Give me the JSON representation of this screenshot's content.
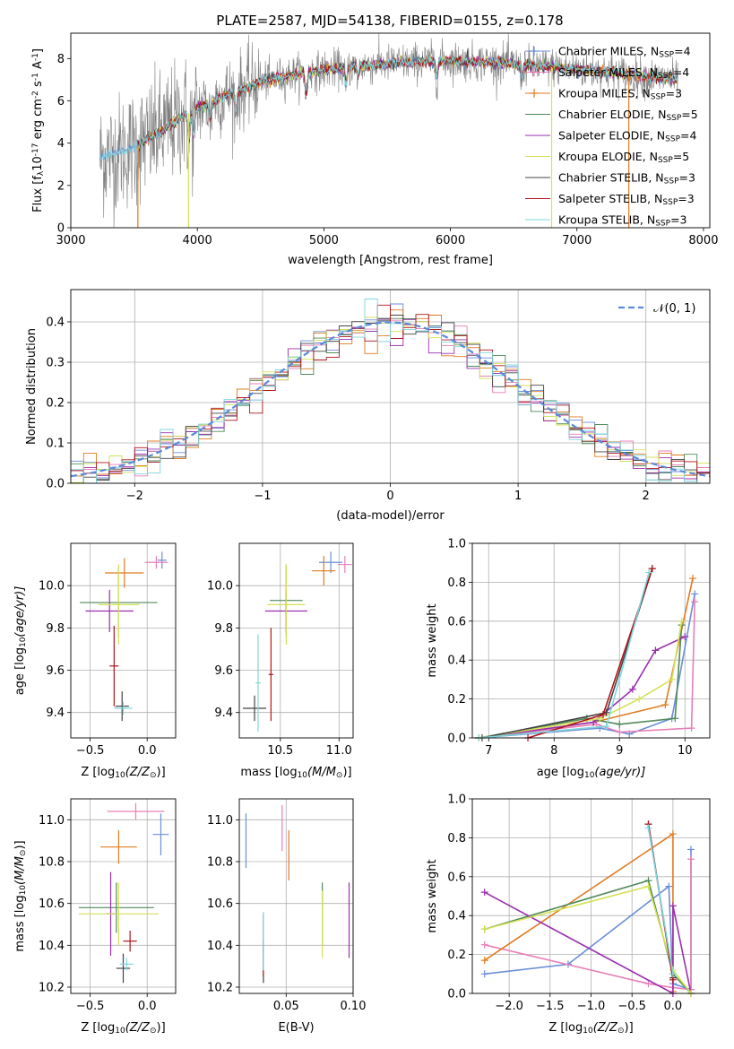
{
  "figure_title": "PLATE=2587, MJD=54138, FIBERID=0155, z=0.178",
  "legend_entries": [
    {
      "label": "Chabrier MILES, N",
      "sub": "SSP",
      "tail": "=4",
      "color": "#6a8ed8",
      "marker": true
    },
    {
      "label": "Salpeter MILES, N",
      "sub": "SSP",
      "tail": "=4",
      "color": "#e87fb8",
      "marker": true
    },
    {
      "label": "Kroupa MILES, N",
      "sub": "SSP",
      "tail": "=3",
      "color": "#e07b1f",
      "marker": true
    },
    {
      "label": "Chabrier ELODIE, N",
      "sub": "SSP",
      "tail": "=5",
      "color": "#4f8a5b",
      "marker": false
    },
    {
      "label": "Salpeter ELODIE, N",
      "sub": "SSP",
      "tail": "=4",
      "color": "#9a2fb0",
      "marker": false
    },
    {
      "label": "Kroupa ELODIE, N",
      "sub": "SSP",
      "tail": "=5",
      "color": "#d4e157",
      "marker": false
    },
    {
      "label": "Chabrier STELIB, N",
      "sub": "SSP",
      "tail": "=3",
      "color": "#444444",
      "marker": false
    },
    {
      "label": "Salpeter STELIB, N",
      "sub": "SSP",
      "tail": "=3",
      "color": "#b0141c",
      "marker": false
    },
    {
      "label": "Kroupa STELIB, N",
      "sub": "SSP",
      "tail": "=3",
      "color": "#7fd6dc",
      "marker": false
    }
  ],
  "chart_data": [
    {
      "id": "spectrum",
      "type": "line",
      "xlabel": "wavelength [Angstrom, rest frame]",
      "ylabel": "Flux [f",
      "ylabel_sub": "λ",
      "ylabel_tail": "10",
      "ylabel_sup": "-17",
      "ylabel_end": " erg cm",
      "ylabel_sup2": "-2",
      "ylabel_end2": " s",
      "ylabel_sup3": "-1",
      "ylabel_end3": " A",
      "ylabel_sup4": "-1",
      "ylabel_close": "]",
      "xlim": [
        3000,
        8050
      ],
      "ylim": [
        0,
        9.2
      ],
      "xticks": [
        3000,
        4000,
        5000,
        6000,
        7000,
        8000
      ],
      "yticks": [
        0,
        2,
        4,
        6,
        8
      ],
      "grid": false,
      "legend": "right",
      "continuum": {
        "x": [
          3230,
          3500,
          3700,
          3950,
          4200,
          4500,
          4800,
          5200,
          5600,
          6000,
          6400,
          6800,
          7200,
          7600,
          7800
        ],
        "y": [
          3.3,
          3.8,
          4.5,
          5.5,
          6.2,
          6.9,
          7.3,
          7.6,
          7.8,
          7.9,
          7.8,
          7.6,
          7.4,
          7.1,
          7.0
        ]
      }
    },
    {
      "id": "residuals",
      "type": "histogram",
      "xlabel": "(data-model)/error",
      "ylabel": "Normed distribution",
      "xlim": [
        -2.5,
        2.5
      ],
      "ylim": [
        0,
        0.48
      ],
      "xticks": [
        -2,
        -1,
        0,
        1,
        2
      ],
      "yticks": [
        0,
        0.1,
        0.2,
        0.3,
        0.4
      ],
      "grid": true,
      "legend_label": "𝒩(0, 1)",
      "legend": "top-right",
      "gaussian": {
        "mean": 0,
        "sigma": 1
      }
    },
    {
      "id": "age_vs_Z",
      "type": "errorbar",
      "xlabel": "Z [log",
      "xlabel_sub": "10",
      "xlabel_tail": "(Z/Z",
      "xlabel_sub2": "⊙",
      "xlabel_end": ")]",
      "ylabel": "age  [log",
      "ylabel_sub": "10",
      "ylabel_tail": "(age/yr)]",
      "xlim": [
        -0.67,
        0.25
      ],
      "ylim": [
        9.28,
        10.2
      ],
      "xticks": [
        -0.5,
        0.0
      ],
      "xticklabels": [
        "−0.5",
        "0.0"
      ],
      "yticks": [
        9.4,
        9.6,
        9.8,
        10.0
      ],
      "yticklabels": [
        "9.4",
        "9.6",
        "9.8",
        "10.0"
      ],
      "grid": true,
      "points": [
        {
          "x": 0.13,
          "xerr": 0.04,
          "y": 10.12,
          "yerr": 0.04,
          "color": "#6a8ed8"
        },
        {
          "x": 0.08,
          "xerr": 0.1,
          "y": 10.11,
          "yerr": 0.03,
          "color": "#e87fb8"
        },
        {
          "x": -0.2,
          "xerr": 0.17,
          "y": 10.06,
          "yerr": 0.07,
          "color": "#e07b1f"
        },
        {
          "x": -0.25,
          "xerr": 0.34,
          "y": 9.92,
          "yerr": 0.17,
          "color": "#4f8a5b"
        },
        {
          "x": -0.33,
          "xerr": 0.21,
          "y": 9.88,
          "yerr": 0.1,
          "color": "#9a2fb0"
        },
        {
          "x": -0.25,
          "xerr": 0.18,
          "y": 9.91,
          "yerr": 0.19,
          "color": "#d4e157"
        },
        {
          "x": -0.22,
          "xerr": 0.06,
          "y": 9.43,
          "yerr": 0.07,
          "color": "#444444"
        },
        {
          "x": -0.29,
          "xerr": 0.04,
          "y": 9.62,
          "yerr": 0.19,
          "color": "#b0141c"
        },
        {
          "x": -0.21,
          "xerr": 0.08,
          "y": 9.42,
          "yerr": 0.03,
          "color": "#7fd6dc"
        }
      ]
    },
    {
      "id": "age_vs_mass",
      "type": "errorbar",
      "xlabel": "mass [log",
      "xlabel_sub": "10",
      "xlabel_tail": "(M/M",
      "xlabel_sub2": "⊙",
      "xlabel_end": ")]",
      "ylabel": "",
      "xlim": [
        10.15,
        11.12
      ],
      "ylim": [
        9.28,
        10.2
      ],
      "xticks": [
        10.5,
        11.0
      ],
      "xticklabels": [
        "10.5",
        "11.0"
      ],
      "yticks": [
        9.4,
        9.6,
        9.8,
        10.0
      ],
      "yticklabels": [
        "9.4",
        "9.6",
        "9.8",
        "10.0"
      ],
      "grid": true,
      "points": [
        {
          "x": 10.93,
          "xerr": 0.1,
          "y": 10.11,
          "yerr": 0.05,
          "color": "#6a8ed8"
        },
        {
          "x": 11.05,
          "xerr": 0.06,
          "y": 10.1,
          "yerr": 0.04,
          "color": "#e87fb8"
        },
        {
          "x": 10.87,
          "xerr": 0.1,
          "y": 10.07,
          "yerr": 0.07,
          "color": "#e07b1f"
        },
        {
          "x": 10.55,
          "xerr": 0.14,
          "y": 9.93,
          "yerr": 0.17,
          "color": "#4f8a5b"
        },
        {
          "x": 10.55,
          "xerr": 0.18,
          "y": 9.88,
          "yerr": 0.1,
          "color": "#9a2fb0"
        },
        {
          "x": 10.55,
          "xerr": 0.16,
          "y": 9.91,
          "yerr": 0.19,
          "color": "#d4e157"
        },
        {
          "x": 10.28,
          "xerr": 0.1,
          "y": 9.42,
          "yerr": 0.06,
          "color": "#444444"
        },
        {
          "x": 10.42,
          "xerr": 0.02,
          "y": 9.58,
          "yerr": 0.22,
          "color": "#b0141c"
        },
        {
          "x": 10.31,
          "xerr": 0.02,
          "y": 9.54,
          "yerr": 0.23,
          "color": "#7fd6dc"
        }
      ]
    },
    {
      "id": "massweight_vs_age",
      "type": "line",
      "xlabel": "age  [log",
      "xlabel_sub": "10",
      "xlabel_tail": "(age/yr)]",
      "ylabel": "mass weight",
      "xlim": [
        6.75,
        10.38
      ],
      "ylim": [
        0,
        1.0
      ],
      "xticks": [
        7,
        8,
        9,
        10
      ],
      "xticklabels": [
        "7",
        "8",
        "9",
        "10"
      ],
      "yticks": [
        0,
        0.2,
        0.4,
        0.6,
        0.8,
        1.0
      ],
      "yticklabels": [
        "0.0",
        "0.2",
        "0.4",
        "0.6",
        "0.8",
        "1.0"
      ],
      "grid": true,
      "series": [
        {
          "color": "#6a8ed8",
          "x": [
            6.85,
            8.7,
            9.15,
            9.8,
            10.15
          ],
          "y": [
            0.0,
            0.05,
            0.02,
            0.1,
            0.74
          ]
        },
        {
          "color": "#e87fb8",
          "x": [
            6.85,
            8.65,
            9.0,
            10.1,
            10.15
          ],
          "y": [
            0.0,
            0.07,
            0.03,
            0.05,
            0.7
          ]
        },
        {
          "color": "#e07b1f",
          "x": [
            6.85,
            8.6,
            9.7,
            10.12
          ],
          "y": [
            0.0,
            0.08,
            0.17,
            0.82
          ]
        },
        {
          "color": "#4f8a5b",
          "x": [
            6.85,
            8.5,
            9.0,
            9.85,
            9.95
          ],
          "y": [
            0.0,
            0.1,
            0.07,
            0.1,
            0.58
          ]
        },
        {
          "color": "#9a2fb0",
          "x": [
            6.85,
            8.6,
            9.2,
            9.55,
            10.0
          ],
          "y": [
            0.0,
            0.08,
            0.25,
            0.45,
            0.52
          ]
        },
        {
          "color": "#d4e157",
          "x": [
            6.85,
            8.7,
            9.3,
            9.8,
            9.95
          ],
          "y": [
            0.0,
            0.1,
            0.2,
            0.3,
            0.6
          ]
        },
        {
          "color": "#444444",
          "x": [
            6.9,
            8.8,
            9.5
          ],
          "y": [
            0.0,
            0.13,
            0.87
          ]
        },
        {
          "color": "#b0141c",
          "x": [
            7.6,
            8.75,
            9.5
          ],
          "y": [
            0.0,
            0.12,
            0.87
          ]
        },
        {
          "color": "#7fd6dc",
          "x": [
            6.85,
            8.8,
            9.45
          ],
          "y": [
            0.0,
            0.06,
            0.85
          ]
        }
      ]
    },
    {
      "id": "mass_vs_Z",
      "type": "errorbar",
      "xlabel": "Z [log",
      "xlabel_sub": "10",
      "xlabel_tail": "(Z/Z",
      "xlabel_sub2": "⊙",
      "xlabel_end": ")]",
      "ylabel": "mass [log",
      "ylabel_sub": "10",
      "ylabel_tail": "(M/M",
      "ylabel_sub2": "⊙",
      "ylabel_end": ")]",
      "xlim": [
        -0.67,
        0.25
      ],
      "ylim": [
        10.17,
        11.1
      ],
      "xticks": [
        -0.5,
        0.0
      ],
      "xticklabels": [
        "−0.5",
        "0.0"
      ],
      "yticks": [
        10.2,
        10.4,
        10.6,
        10.8,
        11.0
      ],
      "yticklabels": [
        "10.2",
        "10.4",
        "10.6",
        "10.8",
        "11.0"
      ],
      "grid": true,
      "points": [
        {
          "x": 0.12,
          "xerr": 0.07,
          "y": 10.93,
          "yerr": 0.1,
          "color": "#6a8ed8"
        },
        {
          "x": -0.1,
          "xerr": 0.25,
          "y": 11.04,
          "yerr": 0.04,
          "color": "#e87fb8"
        },
        {
          "x": -0.25,
          "xerr": 0.16,
          "y": 10.87,
          "yerr": 0.08,
          "color": "#e07b1f"
        },
        {
          "x": -0.27,
          "xerr": 0.33,
          "y": 10.58,
          "yerr": 0.12,
          "color": "#4f8a5b"
        },
        {
          "x": -0.32,
          "xerr": 0.04,
          "y": 10.55,
          "yerr": 0.2,
          "color": "#9a2fb0"
        },
        {
          "x": -0.25,
          "xerr": 0.35,
          "y": 10.55,
          "yerr": 0.15,
          "color": "#d4e157"
        },
        {
          "x": -0.21,
          "xerr": 0.06,
          "y": 10.29,
          "yerr": 0.07,
          "color": "#444444"
        },
        {
          "x": -0.15,
          "xerr": 0.06,
          "y": 10.42,
          "yerr": 0.05,
          "color": "#b0141c"
        },
        {
          "x": -0.18,
          "xerr": 0.06,
          "y": 10.31,
          "yerr": 0.03,
          "color": "#7fd6dc"
        }
      ]
    },
    {
      "id": "mass_vs_ebv",
      "type": "errorbar",
      "xlabel": "E(B-V)",
      "ylabel": "",
      "xlim": [
        0.015,
        0.1
      ],
      "ylim": [
        10.17,
        11.1
      ],
      "xticks": [
        0.05,
        0.1
      ],
      "xticklabels": [
        "0.05",
        "0.10"
      ],
      "yticks": [
        10.2,
        10.4,
        10.6,
        10.8,
        11.0
      ],
      "yticklabels": [
        "10.2",
        "10.4",
        "10.6",
        "10.8",
        "11.0"
      ],
      "grid": true,
      "points": [
        {
          "x": 0.02,
          "xerr": 0.0,
          "y": 10.9,
          "yerr": 0.13,
          "color": "#6a8ed8"
        },
        {
          "x": 0.047,
          "xerr": 0.0,
          "y": 10.96,
          "yerr": 0.11,
          "color": "#e87fb8"
        },
        {
          "x": 0.052,
          "xerr": 0.0,
          "y": 10.83,
          "yerr": 0.12,
          "color": "#e07b1f"
        },
        {
          "x": 0.077,
          "xerr": 0.0,
          "y": 10.55,
          "yerr": 0.15,
          "color": "#4f8a5b"
        },
        {
          "x": 0.097,
          "xerr": 0.0,
          "y": 10.52,
          "yerr": 0.18,
          "color": "#9a2fb0"
        },
        {
          "x": 0.077,
          "xerr": 0.0,
          "y": 10.5,
          "yerr": 0.16,
          "color": "#d4e157"
        },
        {
          "x": 0.033,
          "xerr": 0.0,
          "y": 10.32,
          "yerr": 0.1,
          "color": "#444444"
        },
        {
          "x": 0.033,
          "xerr": 0.0,
          "y": 10.4,
          "yerr": 0.15,
          "color": "#b0141c"
        },
        {
          "x": 0.033,
          "xerr": 0.0,
          "y": 10.42,
          "yerr": 0.14,
          "color": "#7fd6dc"
        }
      ]
    },
    {
      "id": "massweight_vs_Z",
      "type": "line",
      "xlabel": "Z [log",
      "xlabel_sub": "10",
      "xlabel_tail": "(Z/Z",
      "xlabel_sub2": "⊙",
      "xlabel_end": ")]",
      "ylabel": "mass weight",
      "xlim": [
        -2.45,
        0.45
      ],
      "ylim": [
        0,
        1.0
      ],
      "xticks": [
        -2.0,
        -1.5,
        -1.0,
        -0.5,
        0.0
      ],
      "xticklabels": [
        "−2.0",
        "−1.5",
        "−1.0",
        "−0.5",
        "0.0"
      ],
      "yticks": [
        0,
        0.2,
        0.4,
        0.6,
        0.8,
        1.0
      ],
      "yticklabels": [
        "0.0",
        "0.2",
        "0.4",
        "0.6",
        "0.8",
        "1.0"
      ],
      "grid": true,
      "series": [
        {
          "color": "#6a8ed8",
          "x": [
            -2.3,
            -1.28,
            -0.05,
            0.0,
            0.22,
            0.22
          ],
          "y": [
            0.1,
            0.15,
            0.55,
            0.05,
            0.02,
            0.74
          ]
        },
        {
          "color": "#e87fb8",
          "x": [
            -2.3,
            -0.3,
            0.0,
            0.22,
            0.22
          ],
          "y": [
            0.25,
            0.05,
            0.03,
            0.02,
            0.69
          ]
        },
        {
          "color": "#e07b1f",
          "x": [
            -2.3,
            0.0,
            0.0
          ],
          "y": [
            0.17,
            0.82,
            0.01
          ]
        },
        {
          "color": "#4f8a5b",
          "x": [
            -2.3,
            -0.3,
            0.0,
            0.22
          ],
          "y": [
            0.33,
            0.58,
            0.1,
            0.0
          ]
        },
        {
          "color": "#9a2fb0",
          "x": [
            -2.3,
            0.0,
            0.0,
            0.22
          ],
          "y": [
            0.52,
            0.0,
            0.45,
            0.0
          ]
        },
        {
          "color": "#d4e157",
          "x": [
            -2.3,
            -0.3,
            0.0,
            0.22
          ],
          "y": [
            0.33,
            0.55,
            0.12,
            0.0
          ]
        },
        {
          "color": "#444444",
          "x": [
            -0.3,
            0.0
          ],
          "y": [
            0.87,
            0.08
          ]
        },
        {
          "color": "#b0141c",
          "x": [
            -0.3,
            0.0
          ],
          "y": [
            0.87,
            0.07
          ]
        },
        {
          "color": "#7fd6dc",
          "x": [
            -0.3,
            0.0
          ],
          "y": [
            0.85,
            0.1
          ]
        }
      ]
    }
  ]
}
